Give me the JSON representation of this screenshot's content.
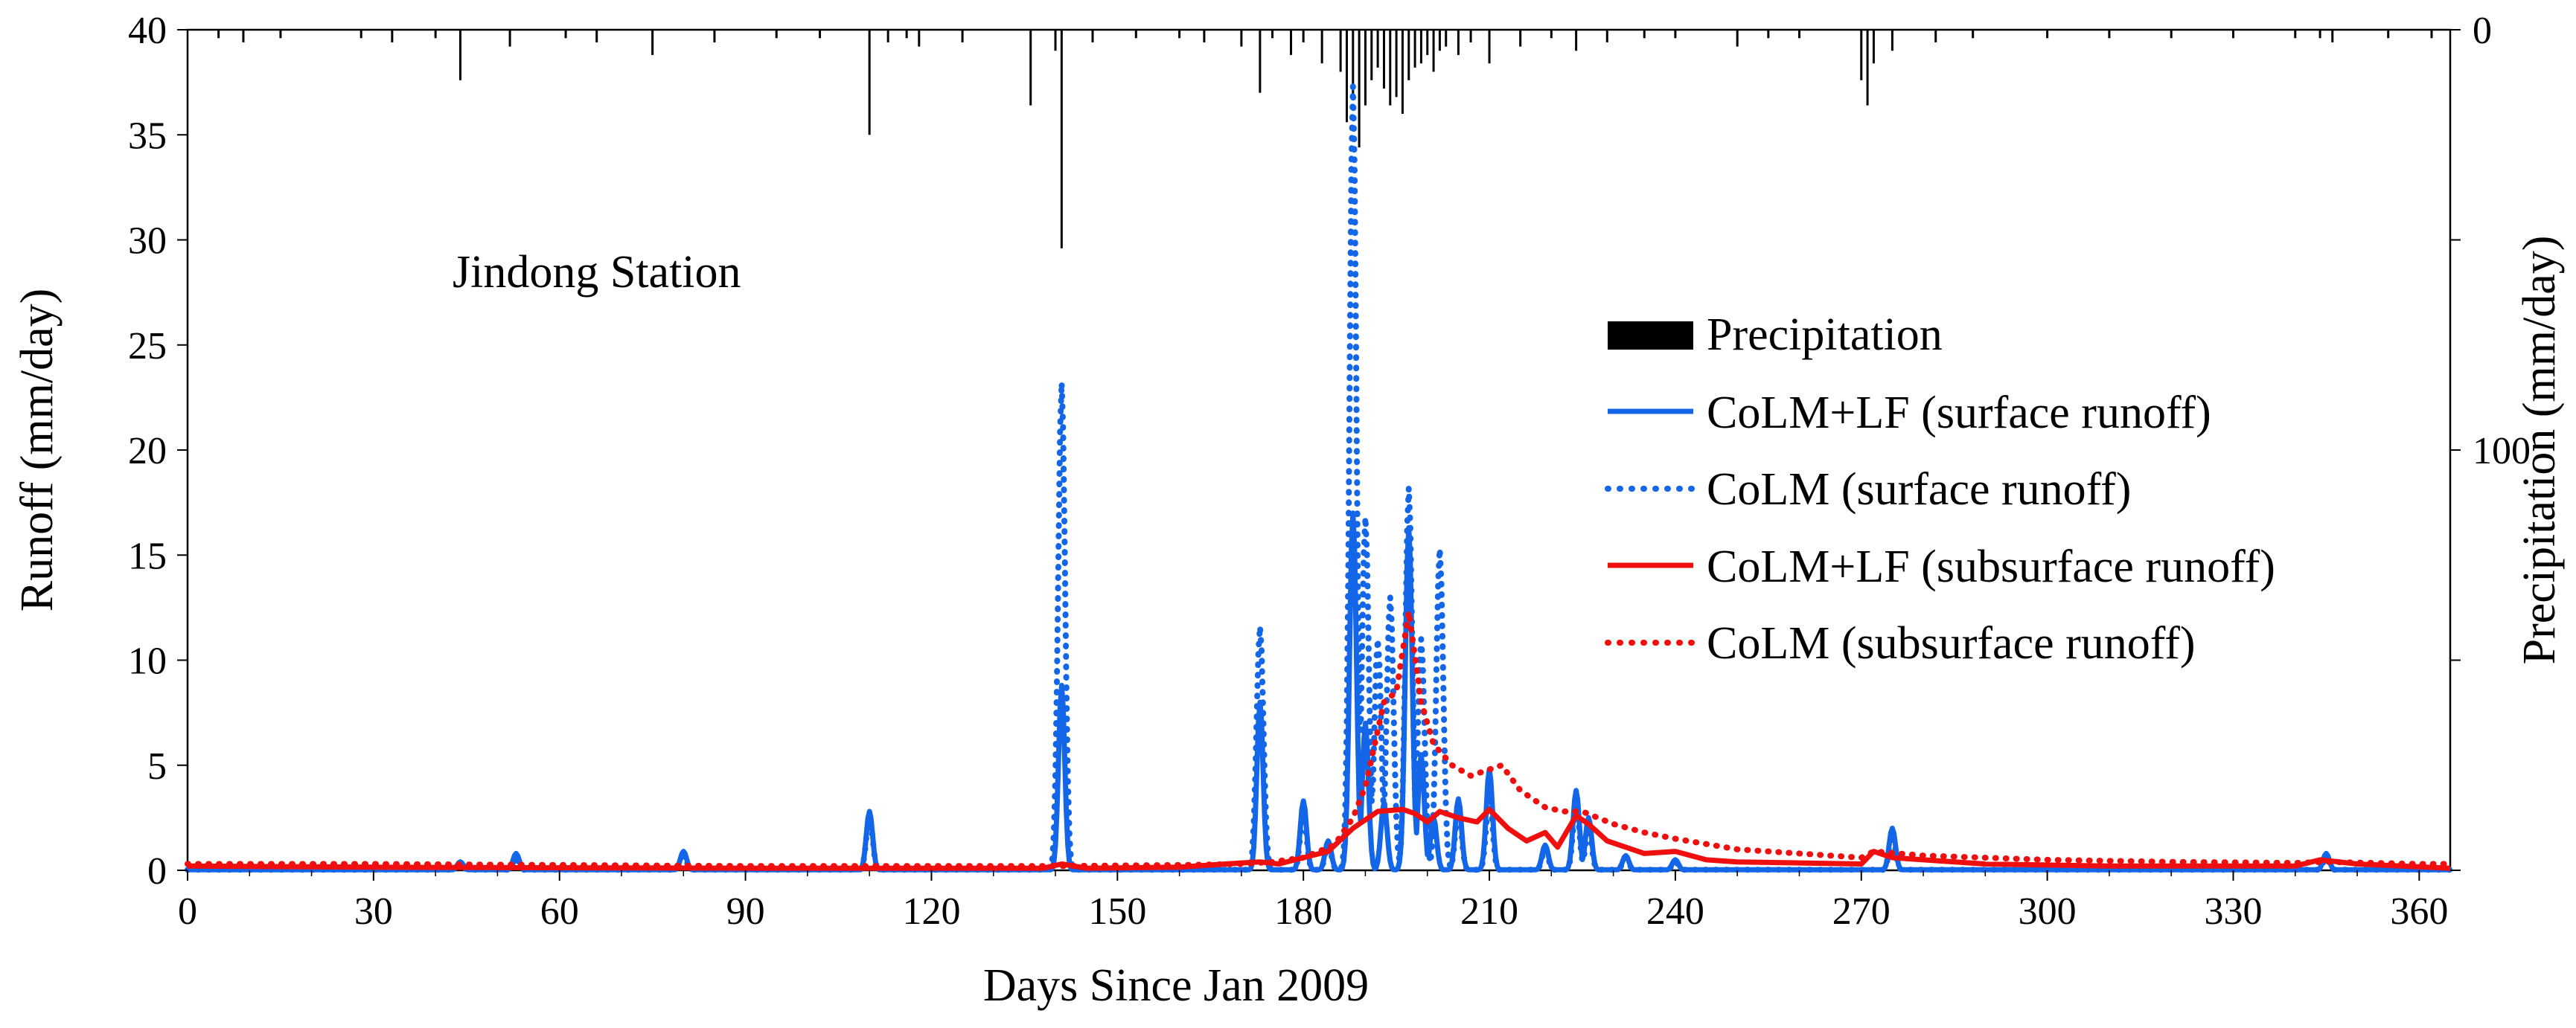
{
  "chart_data": {
    "type": "line",
    "title": "",
    "annotation": "Jindong Station",
    "xlabel": "Days Since Jan 2009",
    "ylabel": "Runoff  (mm/day)",
    "y2label": "Precipitation (mm/day)",
    "xlim": [
      0,
      365
    ],
    "ylim": [
      0,
      40
    ],
    "y2lim": [
      0,
      200
    ],
    "y2_inverted": true,
    "x_ticks": [
      "0",
      "30",
      "60",
      "90",
      "120",
      "150",
      "180",
      "210",
      "240",
      "270",
      "300",
      "330",
      "360"
    ],
    "y_ticks": [
      "0",
      "5",
      "10",
      "15",
      "20",
      "25",
      "30",
      "35",
      "40"
    ],
    "y2_ticks": [
      "0",
      "100"
    ],
    "legend_position": "center-right",
    "colors": {
      "blue": "#1466e8",
      "red": "#f00f0f",
      "black": "#000000"
    },
    "legend": [
      {
        "label": "Precipitation",
        "style": "bar"
      },
      {
        "label": "CoLM+LF (surface runoff)",
        "style": "solid",
        "color": "#1466e8"
      },
      {
        "label": "CoLM (surface runoff)",
        "style": "dotted",
        "color": "#1466e8"
      },
      {
        "label": "CoLM+LF (subsurface runoff)",
        "style": "solid",
        "color": "#f00f0f"
      },
      {
        "label": "CoLM (subsurface runoff)",
        "style": "dotted",
        "color": "#f00f0f"
      }
    ],
    "precipitation": {
      "name": "Precipitation",
      "units": "mm/day",
      "days": [
        5,
        9,
        15,
        28,
        33,
        40,
        44,
        52,
        61,
        66,
        75,
        85,
        95,
        102,
        110,
        113,
        116,
        118,
        125,
        136,
        140,
        141,
        146,
        153,
        160,
        164,
        170,
        173,
        175,
        178,
        180,
        183,
        186,
        187,
        188,
        189,
        190,
        191,
        192,
        193,
        194,
        195,
        196,
        197,
        198,
        199,
        200,
        201,
        202,
        203,
        205,
        207,
        210,
        215,
        220,
        224,
        229,
        235,
        240,
        250,
        255,
        260,
        270,
        271,
        272,
        275,
        282,
        288,
        300,
        310,
        320,
        330,
        340,
        344,
        346,
        355,
        362
      ],
      "values": [
        2,
        3,
        2,
        2,
        3,
        2,
        12,
        4,
        2,
        3,
        6,
        3,
        2,
        2,
        25,
        3,
        2,
        4,
        3,
        18,
        5,
        52,
        3,
        2,
        2,
        3,
        4,
        15,
        2,
        6,
        3,
        8,
        10,
        22,
        16,
        28,
        18,
        12,
        9,
        14,
        18,
        16,
        20,
        12,
        9,
        8,
        6,
        10,
        5,
        4,
        6,
        3,
        8,
        4,
        2,
        5,
        3,
        2,
        2,
        4,
        2,
        2,
        12,
        18,
        8,
        5,
        3,
        2,
        2,
        2,
        2,
        2,
        2,
        2,
        3,
        2,
        2
      ]
    },
    "series": [
      {
        "name": "CoLM+LF (surface runoff)",
        "color": "#1466e8",
        "dash": "solid",
        "peaks": [
          [
            44,
            0.4
          ],
          [
            53,
            0.8
          ],
          [
            80,
            0.9
          ],
          [
            110,
            2.8
          ],
          [
            141,
            8.8
          ],
          [
            173,
            8.0
          ],
          [
            180,
            3.3
          ],
          [
            184,
            1.4
          ],
          [
            188,
            17.0
          ],
          [
            190,
            7.0
          ],
          [
            193,
            3.2
          ],
          [
            197,
            16.3
          ],
          [
            199,
            5.5
          ],
          [
            201,
            2.5
          ],
          [
            205,
            3.4
          ],
          [
            210,
            4.8
          ],
          [
            219,
            1.2
          ],
          [
            224,
            3.8
          ],
          [
            226,
            2.5
          ],
          [
            232,
            0.7
          ],
          [
            240,
            0.5
          ],
          [
            275,
            2.0
          ],
          [
            345,
            0.8
          ]
        ]
      },
      {
        "name": "CoLM (surface runoff)",
        "color": "#1466e8",
        "dash": "dotted",
        "peaks": [
          [
            44,
            0.3
          ],
          [
            53,
            0.6
          ],
          [
            80,
            0.7
          ],
          [
            110,
            2.6
          ],
          [
            141,
            23.2
          ],
          [
            173,
            11.6
          ],
          [
            180,
            2.8
          ],
          [
            184,
            1.2
          ],
          [
            188,
            37.3
          ],
          [
            190,
            16.8
          ],
          [
            192,
            11.0
          ],
          [
            194,
            13.0
          ],
          [
            197,
            18.2
          ],
          [
            199,
            11.0
          ],
          [
            202,
            15.3
          ],
          [
            205,
            3.0
          ],
          [
            210,
            3.6
          ],
          [
            219,
            1.0
          ],
          [
            224,
            3.2
          ],
          [
            226,
            2.0
          ],
          [
            232,
            0.6
          ],
          [
            240,
            0.4
          ],
          [
            275,
            1.7
          ],
          [
            345,
            0.6
          ]
        ]
      },
      {
        "name": "CoLM+LF (subsurface runoff)",
        "color": "#f00f0f",
        "dash": "solid",
        "points": [
          [
            0,
            0.2
          ],
          [
            30,
            0.15
          ],
          [
            60,
            0.12
          ],
          [
            90,
            0.1
          ],
          [
            120,
            0.1
          ],
          [
            138,
            0.1
          ],
          [
            141,
            0.3
          ],
          [
            145,
            0.1
          ],
          [
            160,
            0.15
          ],
          [
            170,
            0.35
          ],
          [
            173,
            0.4
          ],
          [
            176,
            0.3
          ],
          [
            180,
            0.6
          ],
          [
            184,
            0.9
          ],
          [
            188,
            2.0
          ],
          [
            192,
            2.8
          ],
          [
            196,
            2.9
          ],
          [
            198,
            2.7
          ],
          [
            200,
            2.3
          ],
          [
            202,
            2.8
          ],
          [
            205,
            2.5
          ],
          [
            208,
            2.3
          ],
          [
            210,
            2.9
          ],
          [
            213,
            2.0
          ],
          [
            216,
            1.4
          ],
          [
            219,
            1.8
          ],
          [
            221,
            1.1
          ],
          [
            224,
            2.6
          ],
          [
            226,
            2.2
          ],
          [
            229,
            1.4
          ],
          [
            232,
            1.1
          ],
          [
            235,
            0.8
          ],
          [
            240,
            0.9
          ],
          [
            245,
            0.5
          ],
          [
            250,
            0.4
          ],
          [
            260,
            0.35
          ],
          [
            270,
            0.3
          ],
          [
            272,
            0.9
          ],
          [
            275,
            0.6
          ],
          [
            280,
            0.5
          ],
          [
            290,
            0.3
          ],
          [
            300,
            0.25
          ],
          [
            310,
            0.2
          ],
          [
            320,
            0.2
          ],
          [
            330,
            0.2
          ],
          [
            340,
            0.2
          ],
          [
            344,
            0.5
          ],
          [
            350,
            0.3
          ],
          [
            365,
            0.1
          ]
        ]
      },
      {
        "name": "CoLM (subsurface runoff)",
        "color": "#f00f0f",
        "dash": "dotted",
        "points": [
          [
            0,
            0.3
          ],
          [
            30,
            0.3
          ],
          [
            60,
            0.25
          ],
          [
            90,
            0.2
          ],
          [
            120,
            0.2
          ],
          [
            140,
            0.2
          ],
          [
            160,
            0.25
          ],
          [
            170,
            0.3
          ],
          [
            175,
            0.4
          ],
          [
            180,
            0.6
          ],
          [
            185,
            1.2
          ],
          [
            188,
            2.5
          ],
          [
            190,
            4.0
          ],
          [
            193,
            8.0
          ],
          [
            195,
            8.5
          ],
          [
            197,
            12.3
          ],
          [
            199,
            8.0
          ],
          [
            201,
            6.0
          ],
          [
            204,
            5.0
          ],
          [
            207,
            4.5
          ],
          [
            210,
            4.8
          ],
          [
            212,
            5.0
          ],
          [
            215,
            3.8
          ],
          [
            219,
            3.0
          ],
          [
            222,
            2.8
          ],
          [
            225,
            2.8
          ],
          [
            230,
            2.2
          ],
          [
            235,
            1.8
          ],
          [
            240,
            1.5
          ],
          [
            250,
            1.0
          ],
          [
            260,
            0.8
          ],
          [
            270,
            0.6
          ],
          [
            272,
            0.9
          ],
          [
            280,
            0.7
          ],
          [
            300,
            0.5
          ],
          [
            320,
            0.4
          ],
          [
            340,
            0.35
          ],
          [
            345,
            0.4
          ],
          [
            360,
            0.3
          ],
          [
            365,
            0.3
          ]
        ]
      }
    ]
  }
}
